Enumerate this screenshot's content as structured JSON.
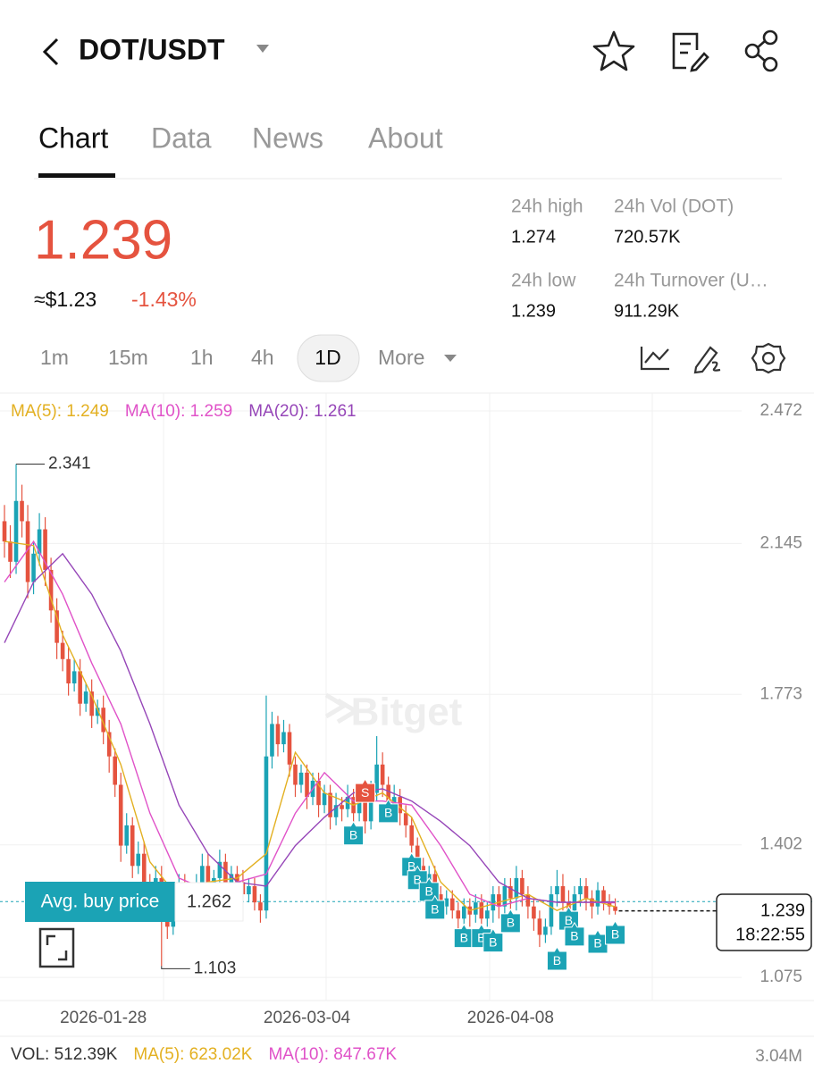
{
  "header": {
    "pair": "DOT/USDT"
  },
  "tabs": [
    "Chart",
    "Data",
    "News",
    "About"
  ],
  "ticker": {
    "last": "1.239",
    "usd": "≈$1.23",
    "change": "-1.43%",
    "stats": [
      {
        "label": "24h high",
        "value": "1.274"
      },
      {
        "label": "24h Vol (DOT)",
        "value": "720.57K"
      },
      {
        "label": "24h low",
        "value": "1.239"
      },
      {
        "label": "24h Turnover (U…",
        "value": "911.29K"
      }
    ]
  },
  "intervals": [
    "1m",
    "15m",
    "1h",
    "4h",
    "1D",
    "More"
  ],
  "chart_data": {
    "type": "candlestick",
    "watermark": "Bitget",
    "up_color": "#1ba3b5",
    "down_color": "#e5533f",
    "xlim": [
      -0.77,
      126.73
    ],
    "xticks": [
      {
        "value": 17,
        "label": "2026-01-28"
      },
      {
        "value": 52,
        "label": "2026-03-04"
      },
      {
        "value": 87,
        "label": "2026-04-08"
      }
    ],
    "ylim": [
      1.018,
      2.516
    ],
    "yticks": [
      2.472,
      2.145,
      1.773,
      1.402,
      1.075
    ],
    "grid": true,
    "open": [
      2.2,
      2.15,
      2.1,
      2.25,
      2.2,
      2.05,
      2.12,
      2.18,
      2.08,
      1.98,
      1.9,
      1.86,
      1.8,
      1.83,
      1.75,
      1.78,
      1.72,
      1.74,
      1.68,
      1.62,
      1.55,
      1.4,
      1.45,
      1.35,
      1.38,
      1.3,
      1.28,
      1.32,
      1.25,
      1.2,
      1.27,
      1.3,
      1.28,
      1.26,
      1.3,
      1.35,
      1.29,
      1.32,
      1.36,
      1.3,
      1.33,
      1.31,
      1.28,
      1.3,
      1.26,
      1.24,
      1.62,
      1.7,
      1.65,
      1.68,
      1.6,
      1.55,
      1.58,
      1.52,
      1.56,
      1.5,
      1.53,
      1.47,
      1.5,
      1.49,
      1.52,
      1.48,
      1.51,
      1.46,
      1.53,
      1.6,
      1.55,
      1.5,
      1.52,
      1.48,
      1.45,
      1.4,
      1.35,
      1.3,
      1.33,
      1.28,
      1.25,
      1.27,
      1.24,
      1.22,
      1.25,
      1.23,
      1.26,
      1.22,
      1.24,
      1.28,
      1.25,
      1.3,
      1.27,
      1.32,
      1.28,
      1.25,
      1.22,
      1.18,
      1.2,
      1.28,
      1.3,
      1.26,
      1.24,
      1.28,
      1.3,
      1.27,
      1.25,
      1.29,
      1.26,
      1.25
    ],
    "high": [
      2.24,
      2.19,
      2.341,
      2.29,
      2.24,
      2.15,
      2.22,
      2.21,
      2.11,
      2.01,
      1.93,
      1.89,
      1.86,
      1.86,
      1.8,
      1.81,
      1.76,
      1.77,
      1.71,
      1.64,
      1.58,
      1.48,
      1.47,
      1.41,
      1.41,
      1.33,
      1.35,
      1.35,
      1.28,
      1.3,
      1.33,
      1.33,
      1.31,
      1.33,
      1.38,
      1.38,
      1.34,
      1.39,
      1.38,
      1.35,
      1.35,
      1.34,
      1.32,
      1.32,
      1.28,
      1.77,
      1.73,
      1.72,
      1.71,
      1.7,
      1.62,
      1.6,
      1.6,
      1.58,
      1.58,
      1.55,
      1.55,
      1.53,
      1.52,
      1.55,
      1.54,
      1.53,
      1.53,
      1.56,
      1.67,
      1.63,
      1.57,
      1.55,
      1.54,
      1.5,
      1.47,
      1.42,
      1.37,
      1.35,
      1.35,
      1.3,
      1.29,
      1.29,
      1.26,
      1.27,
      1.27,
      1.28,
      1.28,
      1.26,
      1.3,
      1.3,
      1.32,
      1.32,
      1.35,
      1.34,
      1.3,
      1.27,
      1.24,
      1.22,
      1.3,
      1.34,
      1.33,
      1.29,
      1.3,
      1.32,
      1.32,
      1.29,
      1.31,
      1.3,
      1.28,
      1.27
    ],
    "low": [
      2.11,
      2.06,
      2.07,
      2.16,
      2.01,
      2.02,
      2.09,
      2.04,
      1.95,
      1.86,
      1.83,
      1.77,
      1.78,
      1.72,
      1.73,
      1.69,
      1.7,
      1.65,
      1.58,
      1.52,
      1.36,
      1.38,
      1.32,
      1.33,
      1.27,
      1.25,
      1.26,
      1.103,
      1.17,
      1.18,
      1.24,
      1.26,
      1.23,
      1.24,
      1.28,
      1.27,
      1.27,
      1.29,
      1.28,
      1.28,
      1.29,
      1.26,
      1.26,
      1.24,
      1.21,
      1.22,
      1.59,
      1.62,
      1.63,
      1.57,
      1.52,
      1.53,
      1.49,
      1.5,
      1.47,
      1.48,
      1.44,
      1.45,
      1.46,
      1.47,
      1.45,
      1.46,
      1.43,
      1.44,
      1.51,
      1.52,
      1.47,
      1.48,
      1.45,
      1.42,
      1.37,
      1.32,
      1.27,
      1.28,
      1.25,
      1.22,
      1.23,
      1.22,
      1.19,
      1.2,
      1.2,
      1.21,
      1.19,
      1.2,
      1.21,
      1.22,
      1.23,
      1.24,
      1.24,
      1.25,
      1.22,
      1.19,
      1.15,
      1.16,
      1.18,
      1.25,
      1.24,
      1.21,
      1.22,
      1.25,
      1.24,
      1.22,
      1.23,
      1.24,
      1.23,
      1.23
    ],
    "close": [
      2.15,
      2.1,
      2.25,
      2.2,
      2.05,
      2.12,
      2.18,
      2.08,
      1.98,
      1.9,
      1.86,
      1.8,
      1.83,
      1.75,
      1.78,
      1.72,
      1.74,
      1.68,
      1.62,
      1.55,
      1.4,
      1.45,
      1.35,
      1.38,
      1.3,
      1.28,
      1.32,
      1.25,
      1.2,
      1.27,
      1.3,
      1.28,
      1.26,
      1.3,
      1.35,
      1.29,
      1.32,
      1.36,
      1.3,
      1.33,
      1.31,
      1.28,
      1.3,
      1.26,
      1.24,
      1.62,
      1.7,
      1.65,
      1.68,
      1.6,
      1.55,
      1.58,
      1.52,
      1.56,
      1.5,
      1.53,
      1.47,
      1.5,
      1.49,
      1.52,
      1.48,
      1.51,
      1.46,
      1.53,
      1.6,
      1.55,
      1.5,
      1.52,
      1.48,
      1.45,
      1.4,
      1.35,
      1.3,
      1.33,
      1.28,
      1.25,
      1.27,
      1.24,
      1.22,
      1.25,
      1.23,
      1.26,
      1.22,
      1.24,
      1.28,
      1.25,
      1.3,
      1.27,
      1.32,
      1.28,
      1.25,
      1.22,
      1.18,
      1.2,
      1.28,
      1.3,
      1.26,
      1.24,
      1.28,
      1.3,
      1.27,
      1.25,
      1.29,
      1.26,
      1.25,
      1.239
    ],
    "ma": [
      {
        "name": "MA(5): 1.249",
        "color": "#e3b021",
        "x": [
          0,
          5,
          10,
          15,
          20,
          25,
          30,
          35,
          40,
          45,
          50,
          55,
          60,
          65,
          70,
          75,
          80,
          85,
          90,
          95,
          100,
          105
        ],
        "values": [
          2.15,
          2.14,
          1.92,
          1.77,
          1.6,
          1.36,
          1.27,
          1.31,
          1.32,
          1.38,
          1.63,
          1.53,
          1.5,
          1.53,
          1.47,
          1.31,
          1.24,
          1.26,
          1.28,
          1.24,
          1.27,
          1.249
        ]
      },
      {
        "name": "MA(10): 1.259",
        "color": "#e052c8",
        "x": [
          0,
          5,
          10,
          15,
          20,
          25,
          30,
          35,
          40,
          45,
          50,
          55,
          60,
          65,
          70,
          75,
          80,
          85,
          90,
          95,
          100,
          105
        ],
        "values": [
          2.05,
          2.15,
          2.02,
          1.85,
          1.7,
          1.48,
          1.32,
          1.29,
          1.31,
          1.33,
          1.48,
          1.58,
          1.51,
          1.51,
          1.5,
          1.4,
          1.28,
          1.25,
          1.27,
          1.26,
          1.26,
          1.259
        ]
      },
      {
        "name": "MA(20): 1.261",
        "color": "#9646b8",
        "x": [
          0,
          5,
          10,
          15,
          20,
          25,
          30,
          35,
          40,
          45,
          50,
          55,
          60,
          65,
          70,
          75,
          80,
          85,
          90,
          95,
          100,
          105
        ],
        "values": [
          1.9,
          2.05,
          2.12,
          2.02,
          1.88,
          1.7,
          1.5,
          1.38,
          1.31,
          1.3,
          1.4,
          1.47,
          1.53,
          1.54,
          1.51,
          1.46,
          1.4,
          1.31,
          1.27,
          1.26,
          1.26,
          1.261
        ]
      }
    ],
    "trades": [
      {
        "label": "B",
        "day": 60,
        "price": 1.426
      },
      {
        "label": "S",
        "day": 62,
        "price": 1.531
      },
      {
        "label": "B",
        "day": 66,
        "price": 1.481
      },
      {
        "label": "B",
        "day": 70,
        "price": 1.349
      },
      {
        "label": "B",
        "day": 71,
        "price": 1.316
      },
      {
        "label": "B",
        "day": 73,
        "price": 1.287
      },
      {
        "label": "B",
        "day": 74,
        "price": 1.243
      },
      {
        "label": "B",
        "day": 79,
        "price": 1.173
      },
      {
        "label": "B",
        "day": 82,
        "price": 1.173
      },
      {
        "label": "B",
        "day": 84,
        "price": 1.162
      },
      {
        "label": "B",
        "day": 87,
        "price": 1.21
      },
      {
        "label": "B",
        "day": 95,
        "price": 1.117
      },
      {
        "label": "B",
        "day": 97,
        "price": 1.216
      },
      {
        "label": "B",
        "day": 98,
        "price": 1.177
      },
      {
        "label": "B",
        "day": 102,
        "price": 1.159
      },
      {
        "label": "B",
        "day": 105,
        "price": 1.181
      }
    ],
    "avg_buy": {
      "label": "Avg. buy price",
      "value": 1.262
    },
    "clock": "18:22:55",
    "volume": {
      "labels": [
        {
          "text": "VOL: 512.39K",
          "color": "#333333"
        },
        {
          "text": "MA(5): 623.02K",
          "color": "#e3b021"
        },
        {
          "text": "MA(10): 847.67K",
          "color": "#e052c8"
        }
      ],
      "max_label": "3.04M"
    }
  }
}
